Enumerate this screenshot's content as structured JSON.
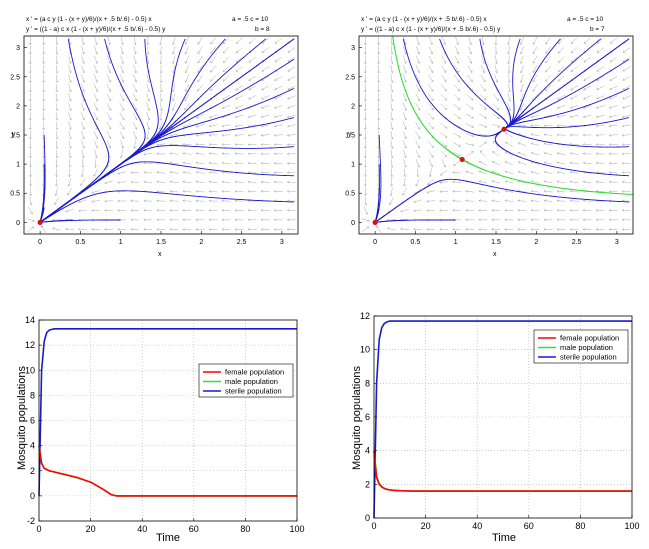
{
  "colors": {
    "trajectory": "#1a1acc",
    "arrow": "#aaaaaa",
    "separatrix": "#22dd22",
    "equilibrium": "#dd1111",
    "female": "#ff0000",
    "male": "#33dd33",
    "sterile": "#1a1acc",
    "grid": "#b0b0b0"
  },
  "chart_data": [
    {
      "type": "line",
      "subtype": "phase-portrait",
      "equation_x": "x ' = (a c y (1 - (x + y)/6)/(x + .5 b/.6) - 0.5) x",
      "equation_y": "y ' = ((1 - a) c x (1 - (x + y)/6)/(x + .5 b/.6) - 0.5) y",
      "param_line1": "a = .5   c = 10",
      "param_line2": "b = 8",
      "xlabel": "x",
      "ylabel": "y",
      "xlim": [
        -0.2,
        3.2
      ],
      "ylim": [
        -0.2,
        3.2
      ],
      "xticks": [
        "0",
        "0.5",
        "1",
        "1.5",
        "2",
        "2.5",
        "3"
      ],
      "yticks": [
        "0",
        "0.5",
        "1",
        "1.5",
        "2",
        "2.5",
        "3"
      ],
      "equilibria": [
        [
          0,
          0
        ]
      ],
      "params": {
        "a": 0.5,
        "b": 8,
        "c": 10
      },
      "grid": false
    },
    {
      "type": "line",
      "subtype": "phase-portrait",
      "equation_x": "x ' = (a c y (1 - (x + y)/6)/(x + .5 b/.6) - 0.5) x",
      "equation_y": "y ' = ((1 - a) c x (1 - (x + y)/6)/(x + .5 b/.6) - 0.5) y",
      "param_line1": "a = .5   c = 10",
      "param_line2": "b = 7",
      "xlabel": "x",
      "ylabel": "y",
      "xlim": [
        -0.2,
        3.2
      ],
      "ylim": [
        -0.2,
        3.2
      ],
      "xticks": [
        "0",
        "0.5",
        "1",
        "1.5",
        "2",
        "2.5",
        "3"
      ],
      "yticks": [
        "0",
        "0.5",
        "1",
        "1.5",
        "2",
        "2.5",
        "3"
      ],
      "equilibria": [
        [
          0,
          0
        ],
        [
          1.08,
          1.08
        ],
        [
          1.6,
          1.6
        ]
      ],
      "params": {
        "a": 0.5,
        "b": 7,
        "c": 10
      },
      "grid": false
    },
    {
      "type": "line",
      "xlabel": "Time",
      "ylabel": "Mosquito  populations",
      "xlim": [
        0,
        100
      ],
      "ylim": [
        -2,
        14
      ],
      "xticks": [
        "0",
        "20",
        "40",
        "60",
        "80",
        "100"
      ],
      "yticks": [
        "-2",
        "0",
        "2",
        "4",
        "6",
        "8",
        "10",
        "12",
        "14"
      ],
      "grid": true,
      "legend": "center-right",
      "x": [
        0,
        1,
        2,
        3,
        4,
        5,
        6,
        8,
        10,
        15,
        20,
        25,
        28,
        30,
        40,
        60,
        80,
        100
      ],
      "series": [
        {
          "name": "female population",
          "values": [
            4,
            2.6,
            2.2,
            2.1,
            2.0,
            1.95,
            1.9,
            1.8,
            1.7,
            1.45,
            1.1,
            0.5,
            0.1,
            0.0,
            0.0,
            0.0,
            0.0,
            0.0
          ]
        },
        {
          "name": "male population",
          "values": [
            4,
            2.6,
            2.2,
            2.1,
            2.0,
            1.95,
            1.9,
            1.8,
            1.7,
            1.45,
            1.1,
            0.5,
            0.1,
            0.0,
            0.0,
            0.0,
            0.0,
            0.0
          ]
        },
        {
          "name": "sterile population",
          "values": [
            0,
            10.0,
            12.3,
            13.0,
            13.2,
            13.25,
            13.3,
            13.3,
            13.3,
            13.3,
            13.3,
            13.3,
            13.3,
            13.3,
            13.3,
            13.3,
            13.3,
            13.3
          ]
        }
      ]
    },
    {
      "type": "line",
      "xlabel": "Time",
      "ylabel": "Mosquito  populations",
      "xlim": [
        0,
        100
      ],
      "ylim": [
        0,
        12
      ],
      "xticks": [
        "0",
        "20",
        "40",
        "60",
        "80",
        "100"
      ],
      "yticks": [
        "0",
        "2",
        "4",
        "6",
        "8",
        "10",
        "12"
      ],
      "grid": true,
      "legend": "top-right",
      "x": [
        0,
        1,
        2,
        3,
        4,
        5,
        6,
        8,
        10,
        15,
        20,
        40,
        60,
        80,
        100
      ],
      "series": [
        {
          "name": "female population",
          "values": [
            4,
            2.4,
            2.0,
            1.85,
            1.75,
            1.7,
            1.67,
            1.64,
            1.62,
            1.6,
            1.6,
            1.6,
            1.6,
            1.6,
            1.6
          ]
        },
        {
          "name": "male population",
          "values": [
            4,
            2.5,
            2.05,
            1.88,
            1.77,
            1.71,
            1.68,
            1.64,
            1.62,
            1.6,
            1.6,
            1.6,
            1.6,
            1.6,
            1.6
          ]
        },
        {
          "name": "sterile population",
          "values": [
            0,
            8.0,
            10.6,
            11.3,
            11.55,
            11.65,
            11.7,
            11.7,
            11.7,
            11.7,
            11.7,
            11.7,
            11.7,
            11.7,
            11.7
          ]
        }
      ]
    }
  ]
}
